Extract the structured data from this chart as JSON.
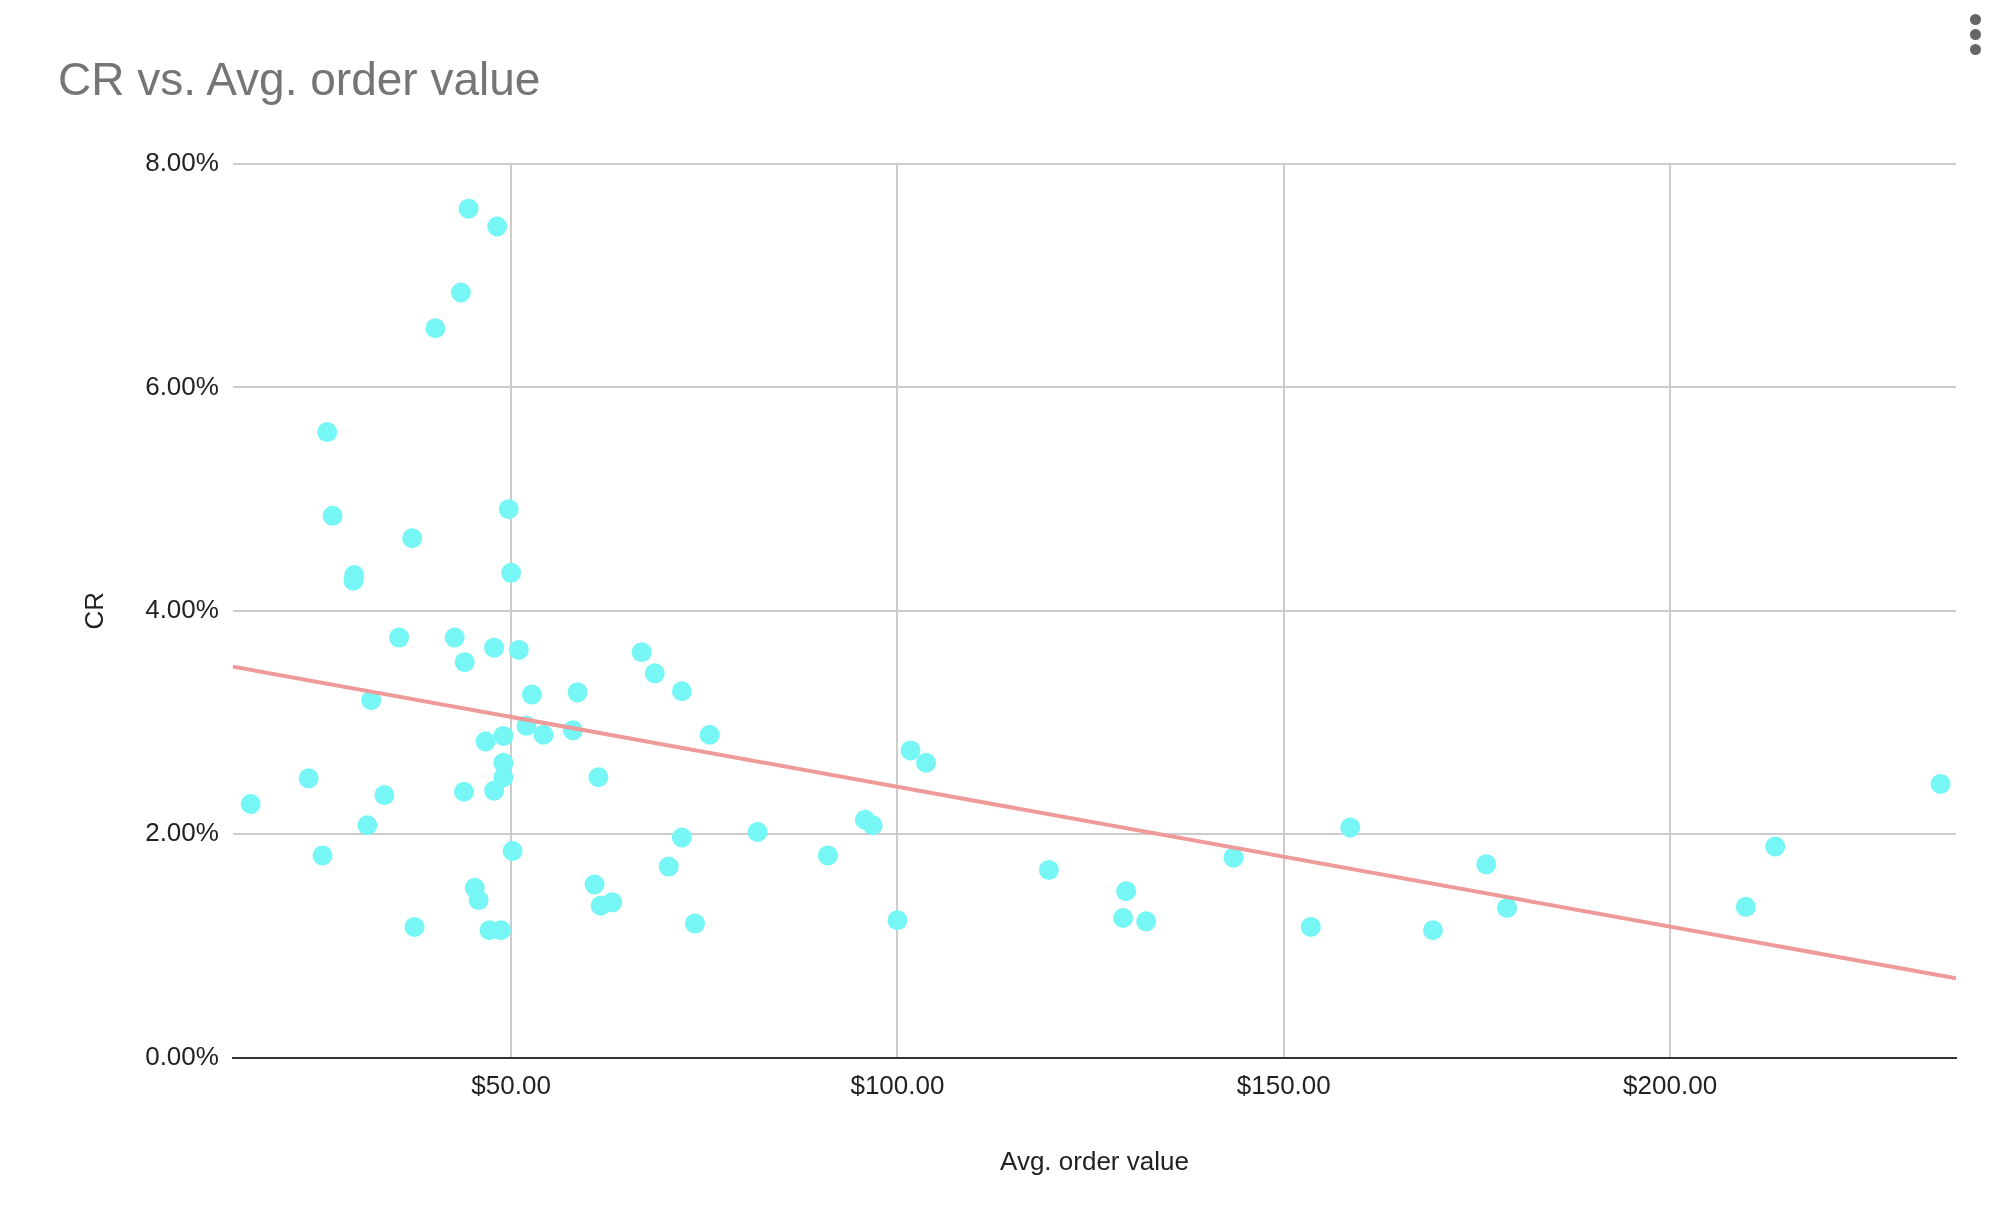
{
  "chart_data": {
    "type": "scatter",
    "title": "CR vs. Avg. order value",
    "xlabel": "Avg. order value",
    "ylabel": "CR",
    "xlim": [
      14,
      237
    ],
    "ylim": [
      0,
      8
    ],
    "xticks": [
      {
        "value": 50,
        "label": "$50.00"
      },
      {
        "value": 100,
        "label": "$100.00"
      },
      {
        "value": 150,
        "label": "$150.00"
      },
      {
        "value": 200,
        "label": "$200.00"
      }
    ],
    "yticks": [
      {
        "value": 0,
        "label": "0.00%"
      },
      {
        "value": 2,
        "label": "2.00%"
      },
      {
        "value": 4,
        "label": "4.00%"
      },
      {
        "value": 6,
        "label": "6.00%"
      },
      {
        "value": 8,
        "label": "8.00%"
      }
    ],
    "grid": true,
    "marker": "circle",
    "series": [
      {
        "color": "#77f6f6",
        "x": [
          44.5,
          48.2,
          43.5,
          40.2,
          26.2,
          26.9,
          37.2,
          49.7,
          50.0,
          29.7,
          29.6,
          35.5,
          42.7,
          44.0,
          47.8,
          51.0,
          66.9,
          68.6,
          72.1,
          58.6,
          52.7,
          31.9,
          52.0,
          54.2,
          58.0,
          49.0,
          46.7,
          75.7,
          101.7,
          103.7,
          49.0,
          49.0,
          61.3,
          23.8,
          16.3,
          33.6,
          43.9,
          47.8,
          31.4,
          95.8,
          96.8,
          81.9,
          72.1,
          158.6,
          213.6,
          235.0,
          50.2,
          25.6,
          91.0,
          143.5,
          176.2,
          70.4,
          119.6,
          45.3,
          45.8,
          60.8,
          129.6,
          61.6,
          63.1,
          178.9,
          209.8,
          73.8,
          100.0,
          129.2,
          132.2,
          37.5,
          47.2,
          48.7,
          153.5,
          169.3
        ],
        "values": [
          7.6,
          7.44,
          6.85,
          6.53,
          5.6,
          4.85,
          4.65,
          4.91,
          4.34,
          4.32,
          4.27,
          3.76,
          3.76,
          3.54,
          3.67,
          3.65,
          3.63,
          3.44,
          3.28,
          3.27,
          3.25,
          3.2,
          2.97,
          2.89,
          2.93,
          2.88,
          2.83,
          2.89,
          2.75,
          2.64,
          2.64,
          2.51,
          2.51,
          2.5,
          2.27,
          2.35,
          2.38,
          2.39,
          2.08,
          2.13,
          2.08,
          2.02,
          1.97,
          2.06,
          1.89,
          2.45,
          1.85,
          1.81,
          1.81,
          1.79,
          1.73,
          1.71,
          1.68,
          1.52,
          1.41,
          1.55,
          1.49,
          1.36,
          1.39,
          1.34,
          1.35,
          1.2,
          1.23,
          1.25,
          1.22,
          1.17,
          1.14,
          1.14,
          1.17,
          1.14
        ]
      },
      {
        "type": "line",
        "marker": "none",
        "color": "#ee9a98",
        "x": [
          14,
          237
        ],
        "values": [
          3.5,
          0.71
        ]
      }
    ]
  }
}
